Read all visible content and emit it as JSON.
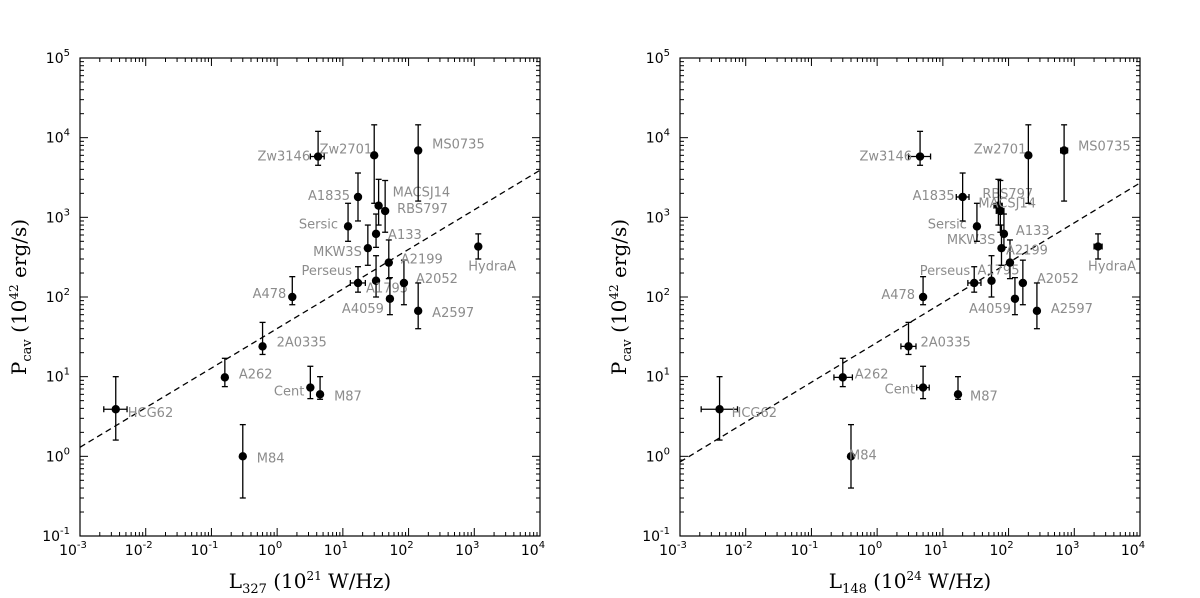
{
  "colors": {
    "point": "#000000",
    "label": "#8c8c8c"
  },
  "chart_data": [
    {
      "type": "scatter",
      "xscale": "log",
      "yscale": "log",
      "xlim": [
        0.001,
        10000
      ],
      "ylim": [
        0.1,
        100000
      ],
      "xtick_base": "10",
      "ytick_base": "10",
      "xtick_exps": [
        "-3",
        "-2",
        "-1",
        "0",
        "1",
        "2",
        "3",
        "4"
      ],
      "ytick_exps": [
        "-1",
        "0",
        "1",
        "2",
        "3",
        "4",
        "5"
      ],
      "xlabel": {
        "main": "L",
        "sub": "327",
        "rest1": " (10",
        "sup": "21",
        "rest2": " W/Hz)"
      },
      "ylabel": {
        "main": "P",
        "sub": "cav",
        "rest1": " (10",
        "sup": "42",
        "rest2": " erg/s)"
      },
      "fit_line": {
        "x": [
          0.001,
          10000
        ],
        "y": [
          1.3,
          3900
        ]
      },
      "points": [
        {
          "name": "HCG62",
          "x": 0.0035,
          "y": 3.9,
          "ylo": 1.6,
          "yhi": 10,
          "xlo": 0.0023,
          "xhi": 0.0052
        },
        {
          "name": "M84",
          "x": 0.3,
          "y": 1.0,
          "ylo": 0.3,
          "yhi": 2.5
        },
        {
          "name": "A262",
          "x": 0.16,
          "y": 9.8,
          "ylo": 7.5,
          "yhi": 17
        },
        {
          "name": "2A0335",
          "x": 0.6,
          "y": 24,
          "ylo": 19,
          "yhi": 48
        },
        {
          "name": "Cent",
          "x": 3.2,
          "y": 7.3,
          "ylo": 5.3,
          "yhi": 13.5
        },
        {
          "name": "M87",
          "x": 4.5,
          "y": 6.0,
          "ylo": 5.2,
          "yhi": 10
        },
        {
          "name": "A478",
          "x": 1.7,
          "y": 100,
          "ylo": 80,
          "yhi": 180
        },
        {
          "name": "Perseus",
          "x": 17,
          "y": 150,
          "ylo": 115,
          "yhi": 240,
          "xlo": 13,
          "xhi": 22
        },
        {
          "name": "A1795",
          "x": 32,
          "y": 160,
          "ylo": 100,
          "yhi": 330
        },
        {
          "name": "A4059",
          "x": 52,
          "y": 95,
          "ylo": 60,
          "yhi": 175
        },
        {
          "name": "A2052",
          "x": 85,
          "y": 150,
          "ylo": 80,
          "yhi": 290
        },
        {
          "name": "A2597",
          "x": 140,
          "y": 67,
          "ylo": 40,
          "yhi": 150
        },
        {
          "name": "A2199",
          "x": 50,
          "y": 270,
          "ylo": 170,
          "yhi": 520
        },
        {
          "name": "MKW3S",
          "x": 24,
          "y": 410,
          "ylo": 250,
          "yhi": 800
        },
        {
          "name": "A133",
          "x": 32,
          "y": 620,
          "ylo": 420,
          "yhi": 1100
        },
        {
          "name": "Sersic",
          "x": 12,
          "y": 770,
          "ylo": 500,
          "yhi": 1500
        },
        {
          "name": "RBS797",
          "x": 44,
          "y": 1200,
          "ylo": 650,
          "yhi": 2900
        },
        {
          "name": "MACSJ14",
          "x": 35,
          "y": 1400,
          "ylo": 800,
          "yhi": 3000
        },
        {
          "name": "A1835",
          "x": 17,
          "y": 1800,
          "ylo": 900,
          "yhi": 3600
        },
        {
          "name": "Zw3146",
          "x": 4.2,
          "y": 5800,
          "ylo": 4500,
          "yhi": 12000,
          "xlo": 3.2,
          "xhi": 5.2
        },
        {
          "name": "Zw2701",
          "x": 30,
          "y": 6000,
          "ylo": 1500,
          "yhi": 14500
        },
        {
          "name": "MS0735",
          "x": 140,
          "y": 6900,
          "ylo": 1600,
          "yhi": 14500
        },
        {
          "name": "HydraA",
          "x": 1150,
          "y": 430,
          "ylo": 300,
          "yhi": 620
        }
      ]
    },
    {
      "type": "scatter",
      "xscale": "log",
      "yscale": "log",
      "xlim": [
        0.001,
        10000
      ],
      "ylim": [
        0.1,
        100000
      ],
      "xtick_base": "10",
      "ytick_base": "10",
      "xtick_exps": [
        "-3",
        "-2",
        "-1",
        "0",
        "1",
        "2",
        "3",
        "4"
      ],
      "ytick_exps": [
        "-1",
        "0",
        "1",
        "2",
        "3",
        "4",
        "5"
      ],
      "xlabel": {
        "main": "L",
        "sub": "148",
        "rest1": " (10",
        "sup": "24",
        "rest2": " W/Hz)"
      },
      "ylabel": {
        "main": "P",
        "sub": "cav",
        "rest1": " (10",
        "sup": "42",
        "rest2": " erg/s)"
      },
      "fit_line": {
        "x": [
          0.001,
          10000
        ],
        "y": [
          0.85,
          2700
        ]
      },
      "points": [
        {
          "name": "HCG62",
          "x": 0.004,
          "y": 3.9,
          "ylo": 1.6,
          "yhi": 10,
          "xlo": 0.0021,
          "xhi": 0.0075
        },
        {
          "name": "M84",
          "x": 0.4,
          "y": 1.0,
          "ylo": 0.4,
          "yhi": 2.5
        },
        {
          "name": "A262",
          "x": 0.3,
          "y": 9.8,
          "ylo": 7.5,
          "yhi": 17,
          "xlo": 0.22,
          "xhi": 0.42
        },
        {
          "name": "2A0335",
          "x": 3.0,
          "y": 24,
          "ylo": 19,
          "yhi": 48,
          "xlo": 2.3,
          "xhi": 3.9
        },
        {
          "name": "Cent",
          "x": 5.0,
          "y": 7.3,
          "ylo": 5.3,
          "yhi": 13.5,
          "xlo": 4.0,
          "xhi": 6.2
        },
        {
          "name": "M87",
          "x": 17,
          "y": 6.0,
          "ylo": 5.2,
          "yhi": 10
        },
        {
          "name": "A478",
          "x": 5.0,
          "y": 100,
          "ylo": 80,
          "yhi": 180
        },
        {
          "name": "Perseus",
          "x": 30,
          "y": 150,
          "ylo": 115,
          "yhi": 240,
          "xlo": 24,
          "xhi": 38
        },
        {
          "name": "A1795",
          "x": 55,
          "y": 160,
          "ylo": 100,
          "yhi": 330
        },
        {
          "name": "A4059",
          "x": 125,
          "y": 95,
          "ylo": 60,
          "yhi": 175
        },
        {
          "name": "A2052",
          "x": 165,
          "y": 150,
          "ylo": 80,
          "yhi": 290
        },
        {
          "name": "A2597",
          "x": 270,
          "y": 67,
          "ylo": 40,
          "yhi": 150
        },
        {
          "name": "A2199",
          "x": 105,
          "y": 270,
          "ylo": 170,
          "yhi": 520
        },
        {
          "name": "MKW3S",
          "x": 78,
          "y": 410,
          "ylo": 250,
          "yhi": 800
        },
        {
          "name": "A133",
          "x": 85,
          "y": 620,
          "ylo": 420,
          "yhi": 1100
        },
        {
          "name": "Sersic",
          "x": 33,
          "y": 770,
          "ylo": 500,
          "yhi": 1500
        },
        {
          "name": "RBS797",
          "x": 75,
          "y": 1200,
          "ylo": 650,
          "yhi": 2900,
          "xlo": 65,
          "xhi": 85
        },
        {
          "name": "MACSJ14",
          "x": 70,
          "y": 1400,
          "ylo": 800,
          "yhi": 3000,
          "xlo": 60,
          "xhi": 80
        },
        {
          "name": "A1835",
          "x": 20,
          "y": 1800,
          "ylo": 900,
          "yhi": 3600,
          "xlo": 16,
          "xhi": 25
        },
        {
          "name": "Zw3146",
          "x": 4.5,
          "y": 5800,
          "ylo": 4500,
          "yhi": 12000,
          "xlo": 3.0,
          "xhi": 6.5
        },
        {
          "name": "Zw2701",
          "x": 200,
          "y": 6000,
          "ylo": 1500,
          "yhi": 14500
        },
        {
          "name": "MS0735",
          "x": 700,
          "y": 6900,
          "ylo": 1600,
          "yhi": 14500,
          "xlo": 620,
          "xhi": 790
        },
        {
          "name": "HydraA",
          "x": 2300,
          "y": 430,
          "ylo": 300,
          "yhi": 620,
          "xlo": 2000,
          "xhi": 2650
        }
      ]
    }
  ]
}
